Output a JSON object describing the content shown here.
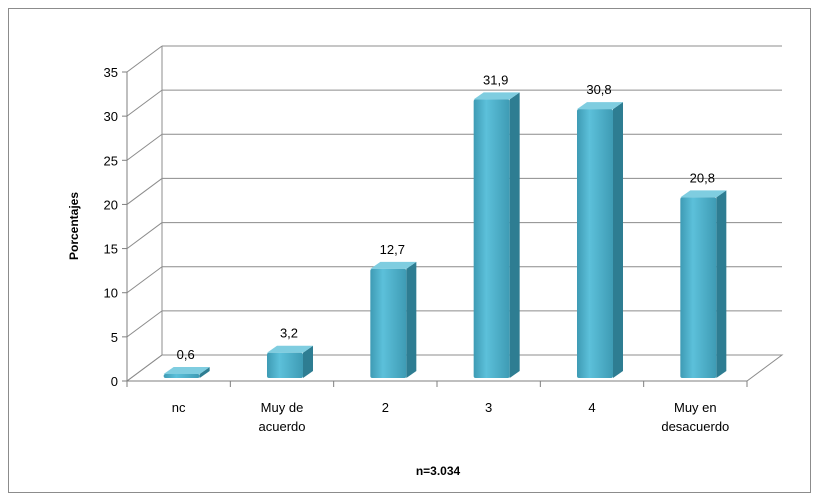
{
  "chart_data": {
    "type": "bar",
    "categories": [
      "nc",
      "Muy de\nacuerdo",
      "2",
      "3",
      "4",
      "Muy en\ndesacuerdo"
    ],
    "values": [
      0.6,
      3.2,
      12.7,
      31.9,
      30.8,
      20.8
    ],
    "value_labels": [
      "0,6",
      "3,2",
      "12,7",
      "31,9",
      "30,8",
      "20,8"
    ],
    "ylabel": "Porcentajes",
    "xlabel": "n=3.034",
    "ylim": [
      0,
      35
    ],
    "yticks": [
      0,
      5,
      10,
      15,
      20,
      25,
      30,
      35
    ],
    "grid": true,
    "legend": "none",
    "style": "3d-column"
  },
  "colors": {
    "bar_front": "#4bacc6",
    "bar_side": "#2e7d92",
    "bar_top": "#7fcde0",
    "grid": "#8c8c8c",
    "axis": "#7f7f7f"
  }
}
